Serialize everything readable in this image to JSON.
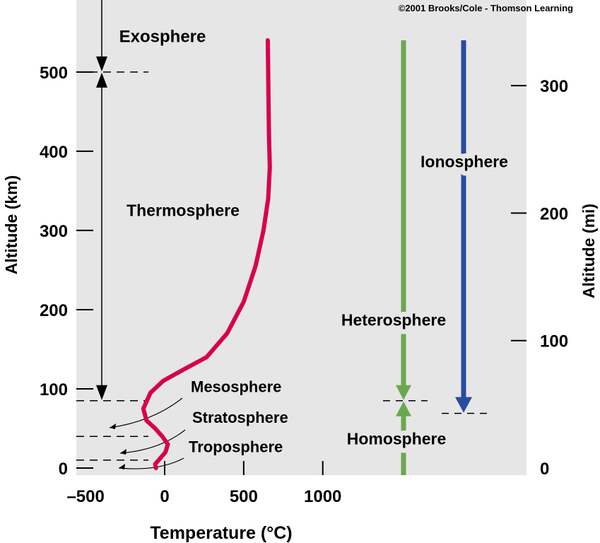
{
  "copyright": "©2001 Brooks/Cole - Thomson Learning",
  "colors": {
    "panel": "#e6e6e6",
    "temperature": "#d6004f",
    "heterosphere": "#6aa84f",
    "ionosphere": "#274b9e",
    "axis": "#000000"
  },
  "chart_data": {
    "type": "line",
    "title": "",
    "xlabel": "Temperature (°C)",
    "ylabel_left": "Altitude (km)",
    "ylabel_right": "Altitude (mi)",
    "xlim": [
      -500,
      1000
    ],
    "ylim_km": [
      0,
      500
    ],
    "x_ticks": [
      {
        "value": -500,
        "label": "–500"
      },
      {
        "value": 0,
        "label": "0"
      },
      {
        "value": 500,
        "label": "500"
      },
      {
        "value": 1000,
        "label": "1000"
      }
    ],
    "y_ticks_km": [
      {
        "value": 0,
        "label": "0"
      },
      {
        "value": 100,
        "label": "100"
      },
      {
        "value": 200,
        "label": "200"
      },
      {
        "value": 300,
        "label": "300"
      },
      {
        "value": 400,
        "label": "400"
      },
      {
        "value": 500,
        "label": "500"
      }
    ],
    "y_ticks_mi": [
      {
        "value": 0,
        "label": "0"
      },
      {
        "value": 100,
        "label": "100"
      },
      {
        "value": 200,
        "label": "200"
      },
      {
        "value": 300,
        "label": "300"
      }
    ],
    "series": [
      {
        "x": [
          -55,
          -60,
          5,
          20,
          -15,
          -60,
          -115,
          -135,
          -90,
          -10,
          125,
          265,
          395,
          500,
          575,
          625,
          655,
          665,
          660,
          657,
          655,
          652
        ],
        "y": [
          0,
          5,
          20,
          30,
          40,
          50,
          60,
          75,
          95,
          110,
          125,
          140,
          170,
          210,
          255,
          300,
          340,
          380,
          420,
          460,
          500,
          540
        ]
      }
    ],
    "layers": [
      {
        "name": "Exosphere",
        "label_km": 538
      },
      {
        "name": "Thermosphere",
        "label_km": 318
      },
      {
        "name": "Mesosphere",
        "label_km": 96
      },
      {
        "name": "Stratosphere",
        "label_km": 57
      },
      {
        "name": "Troposphere",
        "label_km": 20
      }
    ],
    "boundaries_km": [
      500,
      85,
      40,
      10
    ],
    "regions": [
      {
        "name": "Heterosphere",
        "from_km": 540,
        "to_km": 85,
        "label_km": 180
      },
      {
        "name": "Homosphere",
        "from_km": 0,
        "to_km": 85,
        "label_km": 30
      },
      {
        "name": "Ionosphere",
        "from_km": 540,
        "to_km": 70,
        "label_km": 380
      }
    ]
  }
}
